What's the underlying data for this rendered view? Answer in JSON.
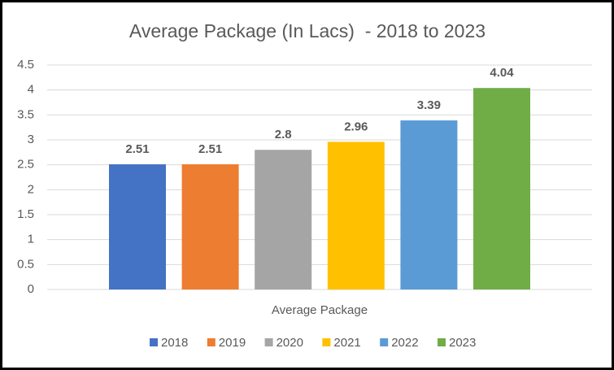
{
  "chart_data": {
    "type": "bar",
    "title": "Average Package (In Lacs)  - 2018 to 2023",
    "categories": [
      "Average Package"
    ],
    "series": [
      {
        "name": "2018",
        "color": "#4472c4",
        "values": [
          2.51
        ]
      },
      {
        "name": "2019",
        "color": "#ed7d31",
        "values": [
          2.51
        ]
      },
      {
        "name": "2020",
        "color": "#a5a5a5",
        "values": [
          2.8
        ]
      },
      {
        "name": "2021",
        "color": "#ffc000",
        "values": [
          2.96
        ]
      },
      {
        "name": "2022",
        "color": "#5b9bd5",
        "values": [
          3.39
        ]
      },
      {
        "name": "2023",
        "color": "#70ad47",
        "values": [
          4.04
        ]
      }
    ],
    "ylim": [
      0,
      4.5
    ],
    "yticks": [
      0,
      0.5,
      1,
      1.5,
      2,
      2.5,
      3,
      3.5,
      4,
      4.5
    ],
    "grid": true,
    "legend": "bottom"
  }
}
